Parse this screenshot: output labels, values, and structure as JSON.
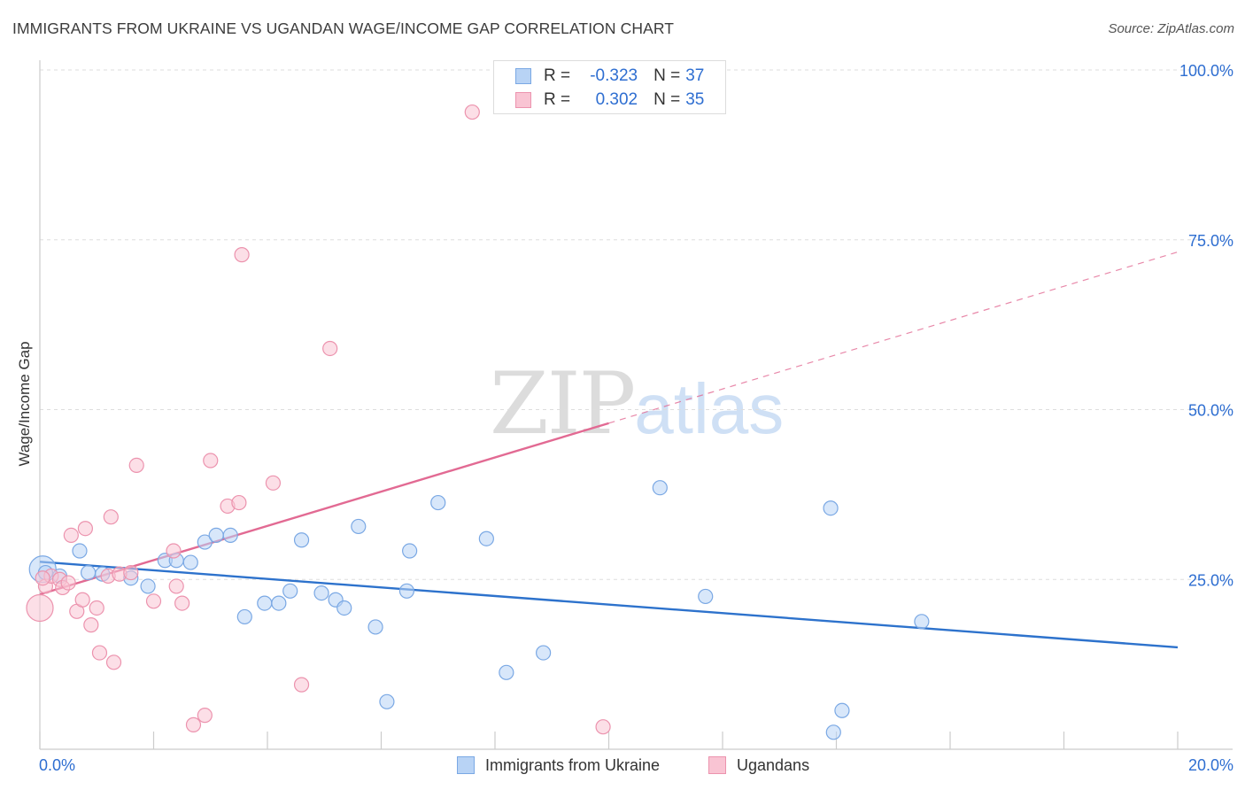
{
  "header": {
    "title": "IMMIGRANTS FROM UKRAINE VS UGANDAN WAGE/INCOME GAP CORRELATION CHART",
    "source": "Source: ZipAtlas.com"
  },
  "watermark": {
    "zip": "ZIP",
    "atlas": "atlas"
  },
  "legend": {
    "series": [
      {
        "r_label": "R =",
        "r_value": "-0.323",
        "n_label": "N =",
        "n_value": "37"
      },
      {
        "r_label": "R =",
        "r_value": "0.302",
        "n_label": "N =",
        "n_value": "35"
      }
    ]
  },
  "bottom_legend": {
    "ukraine": "Immigrants from Ukraine",
    "ugandans": "Ugandans"
  },
  "colors": {
    "ukraine_fill": "#b8d3f5",
    "ukraine_stroke": "#7aa8e4",
    "ukraine_line": "#2d72cc",
    "ugandan_fill": "#f9c4d3",
    "ugandan_stroke": "#ec93ae",
    "ugandan_line": "#e26a93",
    "axis_label": "#2e6ed1"
  },
  "chart_data": {
    "type": "scatter",
    "title": "IMMIGRANTS FROM UKRAINE VS UGANDAN WAGE/INCOME GAP CORRELATION CHART",
    "xlabel": "",
    "ylabel": "Wage/Income Gap",
    "xlim": [
      0,
      20
    ],
    "ylim": [
      0,
      100
    ],
    "x_tick_labels": [
      "0.0%",
      "20.0%"
    ],
    "y_ticks": [
      25,
      50,
      75,
      100
    ],
    "y_tick_labels": [
      "25.0%",
      "50.0%",
      "75.0%",
      "100.0%"
    ],
    "grid": true,
    "series": [
      {
        "name": "Immigrants from Ukraine",
        "r": -0.323,
        "n": 37,
        "trend": {
          "x0": 0,
          "y0": 27.6,
          "x1": 20,
          "y1": 15.0,
          "solid_until": 20
        },
        "points": [
          [
            0.05,
            26.5
          ],
          [
            0.1,
            26.0
          ],
          [
            0.35,
            25.5
          ],
          [
            0.7,
            29.2
          ],
          [
            0.85,
            26.0
          ],
          [
            1.1,
            25.8
          ],
          [
            1.6,
            25.2
          ],
          [
            1.9,
            24.0
          ],
          [
            2.2,
            27.8
          ],
          [
            2.4,
            27.8
          ],
          [
            2.65,
            27.5
          ],
          [
            2.9,
            30.5
          ],
          [
            3.1,
            31.5
          ],
          [
            3.35,
            31.5
          ],
          [
            3.6,
            19.5
          ],
          [
            3.95,
            21.5
          ],
          [
            4.2,
            21.5
          ],
          [
            4.4,
            23.3
          ],
          [
            4.6,
            30.8
          ],
          [
            4.95,
            23.0
          ],
          [
            5.2,
            22.0
          ],
          [
            5.35,
            20.8
          ],
          [
            5.6,
            32.8
          ],
          [
            5.9,
            18.0
          ],
          [
            6.1,
            7.0
          ],
          [
            6.45,
            23.3
          ],
          [
            6.5,
            29.2
          ],
          [
            7.0,
            36.3
          ],
          [
            7.85,
            31.0
          ],
          [
            8.2,
            11.3
          ],
          [
            8.85,
            14.2
          ],
          [
            10.9,
            38.5
          ],
          [
            11.7,
            22.5
          ],
          [
            13.9,
            35.5
          ],
          [
            14.1,
            5.7
          ],
          [
            13.95,
            2.5
          ],
          [
            15.5,
            18.8
          ]
        ]
      },
      {
        "name": "Ugandans",
        "r": 0.302,
        "n": 35,
        "trend": {
          "x0": 0,
          "y0": 22.8,
          "x1": 20,
          "y1": 73.2,
          "solid_until": 10
        },
        "points": [
          [
            0.0,
            20.8
          ],
          [
            0.1,
            24.0
          ],
          [
            0.2,
            25.5
          ],
          [
            0.35,
            25.0
          ],
          [
            0.4,
            23.8
          ],
          [
            0.5,
            24.5
          ],
          [
            0.55,
            31.5
          ],
          [
            0.65,
            20.3
          ],
          [
            0.75,
            22.0
          ],
          [
            0.8,
            32.5
          ],
          [
            0.9,
            18.3
          ],
          [
            1.0,
            20.8
          ],
          [
            1.05,
            14.2
          ],
          [
            1.2,
            25.5
          ],
          [
            1.25,
            34.2
          ],
          [
            1.3,
            12.8
          ],
          [
            1.4,
            25.8
          ],
          [
            1.6,
            26.0
          ],
          [
            1.7,
            41.8
          ],
          [
            2.0,
            21.8
          ],
          [
            2.35,
            29.2
          ],
          [
            2.4,
            24.0
          ],
          [
            2.5,
            21.5
          ],
          [
            2.7,
            3.6
          ],
          [
            2.9,
            5.0
          ],
          [
            3.0,
            42.5
          ],
          [
            3.3,
            35.8
          ],
          [
            3.5,
            36.3
          ],
          [
            3.55,
            72.8
          ],
          [
            4.1,
            39.2
          ],
          [
            4.6,
            9.5
          ],
          [
            5.1,
            59.0
          ],
          [
            7.6,
            93.8
          ],
          [
            9.9,
            3.3
          ],
          [
            0.05,
            25.2
          ]
        ]
      }
    ]
  }
}
